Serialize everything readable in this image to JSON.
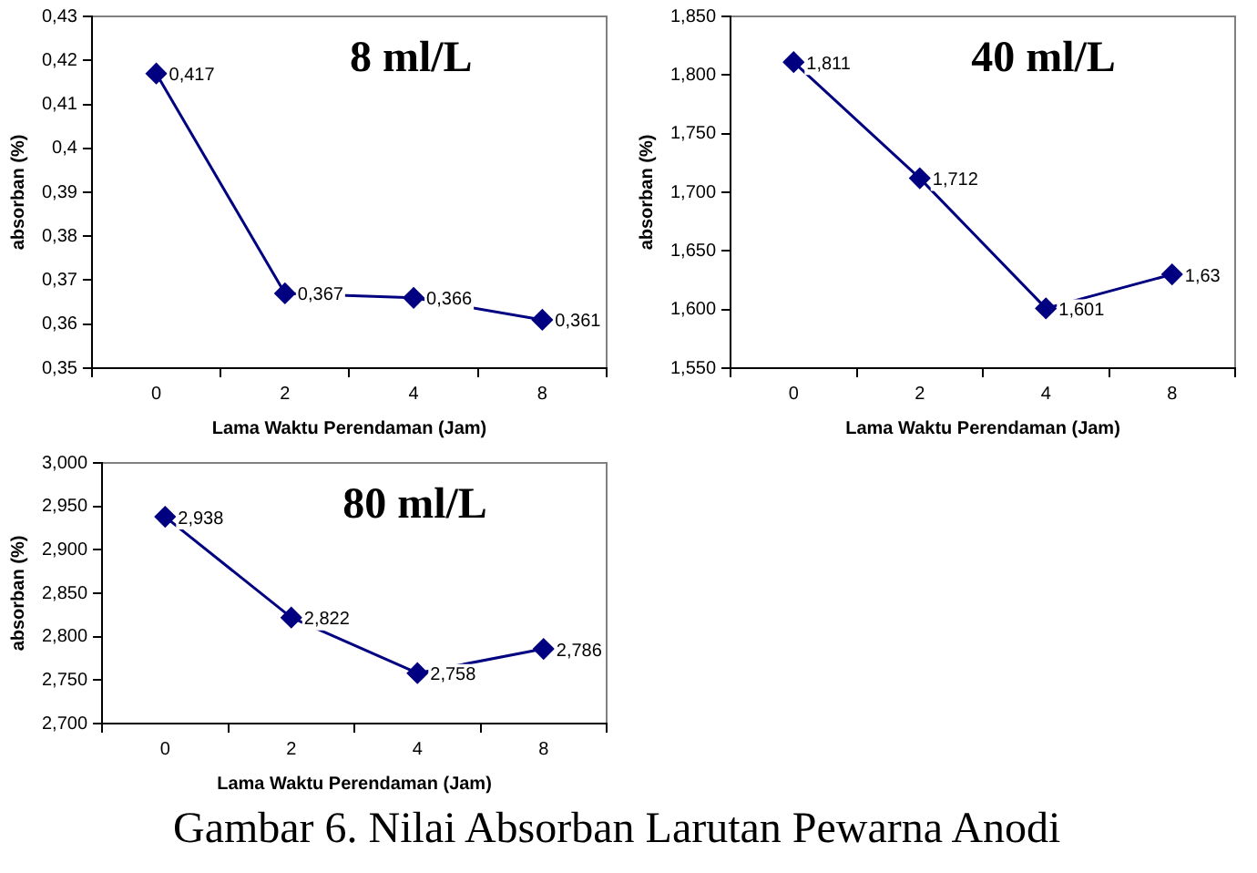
{
  "chart_data": [
    {
      "type": "line",
      "title": "8 ml/L",
      "xlabel": "Lama Waktu Perendaman (Jam)",
      "ylabel": "absorban (%)",
      "categories": [
        "0",
        "2",
        "4",
        "8"
      ],
      "series": [
        {
          "color": "#000080",
          "values": [
            0.417,
            0.367,
            0.366,
            0.361
          ],
          "value_labels": [
            "0,417",
            "0,367",
            "0,366",
            "0,361"
          ]
        }
      ],
      "ylim": [
        0.35,
        0.43
      ],
      "yticks": [
        {
          "value": 0.35,
          "label": "0,35"
        },
        {
          "value": 0.36,
          "label": "0,36"
        },
        {
          "value": 0.37,
          "label": "0,37"
        },
        {
          "value": 0.38,
          "label": "0,38"
        },
        {
          "value": 0.39,
          "label": "0,39"
        },
        {
          "value": 0.4,
          "label": "0,4"
        },
        {
          "value": 0.41,
          "label": "0,41"
        },
        {
          "value": 0.42,
          "label": "0,42"
        },
        {
          "value": 0.43,
          "label": "0,43"
        }
      ],
      "grid": false,
      "legend": false,
      "marker": "diamond",
      "line_style": "solid"
    },
    {
      "type": "line",
      "title": "40 ml/L",
      "xlabel": "Lama Waktu Perendaman (Jam)",
      "ylabel": "absorban (%)",
      "categories": [
        "0",
        "2",
        "4",
        "8"
      ],
      "series": [
        {
          "color": "#000080",
          "values": [
            1.811,
            1.712,
            1.601,
            1.63
          ],
          "value_labels": [
            "1,811",
            "1,712",
            "1,601",
            "1,63"
          ]
        }
      ],
      "ylim": [
        1.55,
        1.85
      ],
      "yticks": [
        {
          "value": 1.55,
          "label": "1,550"
        },
        {
          "value": 1.6,
          "label": "1,600"
        },
        {
          "value": 1.65,
          "label": "1,650"
        },
        {
          "value": 1.7,
          "label": "1,700"
        },
        {
          "value": 1.75,
          "label": "1,750"
        },
        {
          "value": 1.8,
          "label": "1,800"
        },
        {
          "value": 1.85,
          "label": "1,850"
        }
      ],
      "grid": false,
      "legend": false,
      "marker": "diamond",
      "line_style": "solid"
    },
    {
      "type": "line",
      "title": "80 ml/L",
      "xlabel": "Lama Waktu Perendaman (Jam)",
      "ylabel": "absorban (%)",
      "categories": [
        "0",
        "2",
        "4",
        "8"
      ],
      "series": [
        {
          "color": "#000080",
          "values": [
            2.938,
            2.822,
            2.758,
            2.786
          ],
          "value_labels": [
            "2,938",
            "2,822",
            "2,758",
            "2,786"
          ]
        }
      ],
      "ylim": [
        2.7,
        3.0
      ],
      "yticks": [
        {
          "value": 2.7,
          "label": "2,700"
        },
        {
          "value": 2.75,
          "label": "2,750"
        },
        {
          "value": 2.8,
          "label": "2,800"
        },
        {
          "value": 2.85,
          "label": "2,850"
        },
        {
          "value": 2.9,
          "label": "2,900"
        },
        {
          "value": 2.95,
          "label": "2,950"
        },
        {
          "value": 3.0,
          "label": "3,000"
        }
      ],
      "grid": false,
      "legend": false,
      "marker": "diamond",
      "line_style": "solid",
      "annotations": [
        "Gambar 6. Nilai Absorban Larutan Pewarna Anodi"
      ]
    }
  ]
}
